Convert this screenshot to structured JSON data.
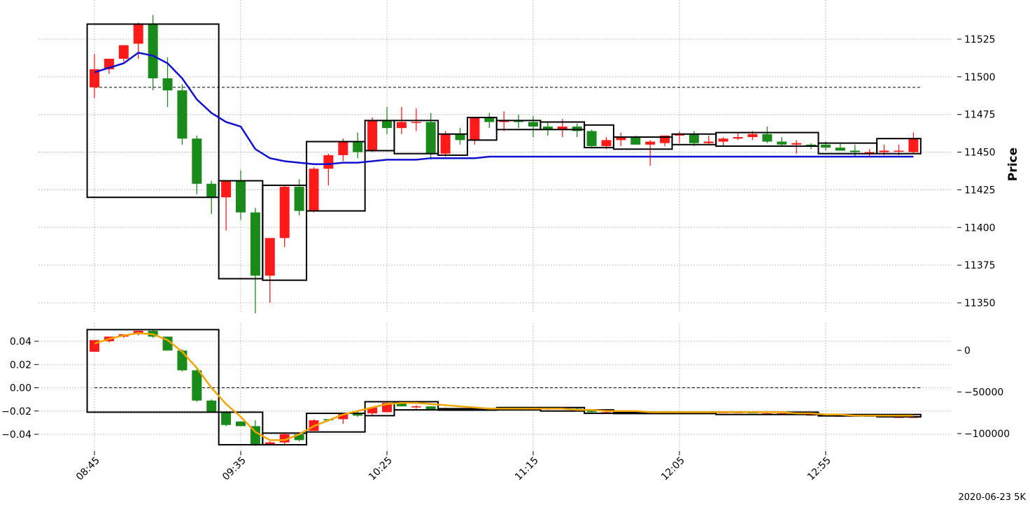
{
  "chart_data": [
    {
      "panel": "price",
      "type": "candlestick",
      "ylabel": "Price",
      "ylim": [
        11335,
        11545
      ],
      "y_ticks": [
        11350,
        11375,
        11400,
        11425,
        11450,
        11475,
        11500,
        11525
      ],
      "y_tick_labels": [
        "11350",
        "11375",
        "11400",
        "11425",
        "11450",
        "11475",
        "11500",
        "11525"
      ],
      "y_axis_side": "right",
      "x_tick_labels": [
        "08:45",
        "09:35",
        "10:25",
        "11:15",
        "12:05",
        "12:55"
      ],
      "x_tick_index": [
        0,
        10,
        20,
        30,
        40,
        50
      ],
      "candle_count": 57,
      "ohlc": [
        [
          11493,
          11515,
          11486,
          11505
        ],
        [
          11505,
          11512,
          11502,
          11512
        ],
        [
          11512,
          11520,
          11510,
          11521
        ],
        [
          11522,
          11536,
          11512,
          11535
        ],
        [
          11535,
          11541,
          11491,
          11499
        ],
        [
          11499,
          11513,
          11480,
          11491
        ],
        [
          11491,
          11495,
          11455,
          11459
        ],
        [
          11459,
          11461,
          11422,
          11429
        ],
        [
          11429,
          11431,
          11409,
          11420
        ],
        [
          11420,
          11430,
          11398,
          11431
        ],
        [
          11431,
          11438,
          11405,
          11410
        ],
        [
          11410,
          11413,
          11343,
          11368
        ],
        [
          11368,
          11393,
          11350,
          11393
        ],
        [
          11393,
          11428,
          11387,
          11427
        ],
        [
          11427,
          11432,
          11408,
          11411
        ],
        [
          11411,
          11440,
          11410,
          11439
        ],
        [
          11439,
          11449,
          11428,
          11448
        ],
        [
          11448,
          11459,
          11444,
          11457
        ],
        [
          11457,
          11463,
          11446,
          11450
        ],
        [
          11451,
          11473,
          11450,
          11471
        ],
        [
          11471,
          11480,
          11462,
          11466
        ],
        [
          11466,
          11480,
          11462,
          11470
        ],
        [
          11470,
          11479,
          11464,
          11470
        ],
        [
          11470,
          11476,
          11445,
          11449
        ],
        [
          11449,
          11464,
          11447,
          11462
        ],
        [
          11462,
          11466,
          11455,
          11458
        ],
        [
          11458,
          11473,
          11455,
          11473
        ],
        [
          11473,
          11476,
          11466,
          11470
        ],
        [
          11470,
          11477,
          11464,
          11471
        ],
        [
          11471,
          11475,
          11466,
          11470
        ],
        [
          11470,
          11474,
          11460,
          11467
        ],
        [
          11467,
          11470,
          11461,
          11465
        ],
        [
          11465,
          11472,
          11460,
          11467
        ],
        [
          11467,
          11469,
          11460,
          11464
        ],
        [
          11464,
          11465,
          11453,
          11454
        ],
        [
          11454,
          11460,
          11452,
          11458
        ],
        [
          11458,
          11463,
          11454,
          11460
        ],
        [
          11460,
          11461,
          11455,
          11455
        ],
        [
          11455,
          11458,
          11441,
          11457
        ],
        [
          11456,
          11461,
          11454,
          11461
        ],
        [
          11461,
          11464,
          11456,
          11462
        ],
        [
          11462,
          11464,
          11454,
          11456
        ],
        [
          11456,
          11461,
          11455,
          11457
        ],
        [
          11457,
          11460,
          11454,
          11459
        ],
        [
          11459,
          11463,
          11458,
          11460
        ],
        [
          11460,
          11464,
          11458,
          11462
        ],
        [
          11462,
          11467,
          11456,
          11457
        ],
        [
          11457,
          11460,
          11454,
          11455
        ],
        [
          11455,
          11458,
          11449,
          11456
        ],
        [
          11455,
          11456,
          11452,
          11454
        ],
        [
          11455,
          11457,
          11451,
          11453
        ],
        [
          11453,
          11456,
          11451,
          11451
        ],
        [
          11451,
          11455,
          11447,
          11450
        ],
        [
          11449,
          11452,
          11447,
          11450
        ],
        [
          11450,
          11455,
          11448,
          11451
        ],
        [
          11451,
          11455,
          11448,
          11451
        ],
        [
          11450,
          11463,
          11449,
          11459
        ]
      ],
      "ma_line": [
        11503,
        11506,
        11509,
        11516,
        11514,
        11509,
        11499,
        11485,
        11476,
        11470,
        11467,
        11452,
        11446,
        11444,
        11443,
        11442,
        11442,
        11443,
        11443,
        11444,
        11445,
        11445,
        11445,
        11446,
        11446,
        11446,
        11446,
        11447,
        11447,
        11447,
        11447,
        11447,
        11447,
        11447,
        11447,
        11447,
        11447,
        11447,
        11447,
        11447,
        11447,
        11447,
        11447,
        11447,
        11447,
        11447,
        11447,
        11447,
        11447,
        11447,
        11447,
        11447,
        11447,
        11447,
        11447,
        11447,
        11447
      ],
      "reference_level": 11493,
      "boxes": [
        {
          "start": -0.5,
          "end": 8.5,
          "low": 11420,
          "high": 11535
        },
        {
          "start": 8.5,
          "end": 11.5,
          "low": 11366,
          "high": 11431
        },
        {
          "start": 11.5,
          "end": 14.5,
          "low": 11365,
          "high": 11428
        },
        {
          "start": 14.5,
          "end": 18.5,
          "low": 11411,
          "high": 11457
        },
        {
          "start": 18.5,
          "end": 20.5,
          "low": 11451,
          "high": 11471
        },
        {
          "start": 20.5,
          "end": 23.5,
          "low": 11449,
          "high": 11471
        },
        {
          "start": 23.5,
          "end": 25.5,
          "low": 11448,
          "high": 11462
        },
        {
          "start": 25.5,
          "end": 27.5,
          "low": 11458,
          "high": 11473
        },
        {
          "start": 27.5,
          "end": 30.5,
          "low": 11465,
          "high": 11471
        },
        {
          "start": 30.5,
          "end": 33.5,
          "low": 11465,
          "high": 11470
        },
        {
          "start": 33.5,
          "end": 35.5,
          "low": 11453,
          "high": 11468
        },
        {
          "start": 35.5,
          "end": 39.5,
          "low": 11452,
          "high": 11460
        },
        {
          "start": 39.5,
          "end": 42.5,
          "low": 11455,
          "high": 11462
        },
        {
          "start": 42.5,
          "end": 49.5,
          "low": 11454,
          "high": 11463
        },
        {
          "start": 49.5,
          "end": 53.5,
          "low": 11449,
          "high": 11456
        },
        {
          "start": 53.5,
          "end": 56.5,
          "low": 11449,
          "high": 11459
        }
      ],
      "colors": {
        "up": "#1a8a1a",
        "down": "#ff1a1a",
        "ma": "#1010d0"
      }
    },
    {
      "panel": "indicator",
      "type": "candlestick",
      "ylim_left": [
        -0.051,
        0.054
      ],
      "y_ticks_left": [
        -0.04,
        -0.02,
        0.0,
        0.02,
        0.04
      ],
      "y_tick_labels_left": [
        "−0.04",
        "−0.02",
        "0.00",
        "0.02",
        "0.04"
      ],
      "ylim_right": [
        -110000,
        17500
      ],
      "y_ticks_right": [
        -100000,
        -50000,
        0
      ],
      "y_tick_labels_right": [
        "−100000",
        "−50000",
        "0"
      ],
      "x_tick_labels": [
        "08:45",
        "09:35",
        "10:25",
        "11:15",
        "12:05",
        "12:55"
      ],
      "ohlc": [
        [
          0.031,
          0.041,
          0.031,
          0.041
        ],
        [
          0.04,
          0.044,
          0.039,
          0.044
        ],
        [
          0.044,
          0.046,
          0.043,
          0.046
        ],
        [
          0.046,
          0.049,
          0.045,
          0.049
        ],
        [
          0.049,
          0.05,
          0.043,
          0.044
        ],
        [
          0.044,
          0.044,
          0.032,
          0.032
        ],
        [
          0.032,
          0.033,
          0.014,
          0.015
        ],
        [
          0.015,
          0.016,
          -0.012,
          -0.011
        ],
        [
          -0.011,
          -0.01,
          -0.021,
          -0.021
        ],
        [
          -0.021,
          -0.02,
          -0.033,
          -0.032
        ],
        [
          -0.029,
          -0.029,
          -0.033,
          -0.033
        ],
        [
          -0.033,
          -0.028,
          -0.05,
          -0.049
        ],
        [
          -0.049,
          -0.046,
          -0.049,
          -0.047
        ],
        [
          -0.047,
          -0.039,
          -0.049,
          -0.04
        ],
        [
          -0.04,
          -0.039,
          -0.046,
          -0.045
        ],
        [
          -0.037,
          -0.027,
          -0.037,
          -0.028
        ],
        [
          -0.027,
          -0.027,
          -0.029,
          -0.028
        ],
        [
          -0.027,
          -0.022,
          -0.031,
          -0.022
        ],
        [
          -0.022,
          -0.02,
          -0.025,
          -0.024
        ],
        [
          -0.022,
          -0.016,
          -0.024,
          -0.017
        ],
        [
          -0.021,
          -0.012,
          -0.021,
          -0.013
        ],
        [
          -0.012,
          -0.012,
          -0.016,
          -0.016
        ],
        [
          -0.016,
          -0.015,
          -0.018,
          -0.016
        ],
        [
          -0.016,
          -0.016,
          -0.019,
          -0.019
        ],
        [
          -0.018,
          -0.017,
          -0.019,
          -0.018
        ],
        [
          -0.018,
          -0.018,
          -0.019,
          -0.019
        ],
        [
          -0.019,
          -0.018,
          -0.019,
          -0.018
        ],
        [
          -0.018,
          -0.018,
          -0.019,
          -0.018
        ],
        [
          -0.018,
          -0.017,
          -0.019,
          -0.018
        ],
        [
          -0.018,
          -0.017,
          -0.019,
          -0.017
        ],
        [
          -0.017,
          -0.017,
          -0.018,
          -0.018
        ],
        [
          -0.018,
          -0.017,
          -0.019,
          -0.017
        ],
        [
          -0.017,
          -0.017,
          -0.018,
          -0.018
        ],
        [
          -0.018,
          -0.017,
          -0.02,
          -0.019
        ],
        [
          -0.019,
          -0.019,
          -0.022,
          -0.021
        ],
        [
          -0.021,
          -0.02,
          -0.022,
          -0.021
        ],
        [
          -0.021,
          -0.02,
          -0.022,
          -0.021
        ],
        [
          -0.021,
          -0.02,
          -0.022,
          -0.021
        ],
        [
          -0.021,
          -0.021,
          -0.022,
          -0.021
        ],
        [
          -0.021,
          -0.02,
          -0.022,
          -0.021
        ],
        [
          -0.021,
          -0.021,
          -0.022,
          -0.021
        ],
        [
          -0.021,
          -0.021,
          -0.022,
          -0.022
        ],
        [
          -0.022,
          -0.021,
          -0.022,
          -0.021
        ],
        [
          -0.021,
          -0.021,
          -0.022,
          -0.021
        ],
        [
          -0.021,
          -0.021,
          -0.022,
          -0.021
        ],
        [
          -0.021,
          -0.021,
          -0.022,
          -0.022
        ],
        [
          -0.022,
          -0.021,
          -0.022,
          -0.022
        ],
        [
          -0.022,
          -0.021,
          -0.023,
          -0.022
        ],
        [
          -0.022,
          -0.022,
          -0.023,
          -0.023
        ],
        [
          -0.023,
          -0.022,
          -0.024,
          -0.023
        ],
        [
          -0.023,
          -0.023,
          -0.024,
          -0.024
        ],
        [
          -0.024,
          -0.023,
          -0.024,
          -0.024
        ],
        [
          -0.024,
          -0.023,
          -0.025,
          -0.024
        ],
        [
          -0.024,
          -0.024,
          -0.025,
          -0.024
        ],
        [
          -0.024,
          -0.024,
          -0.025,
          -0.025
        ],
        [
          -0.025,
          -0.024,
          -0.025,
          -0.025
        ],
        [
          -0.025,
          -0.024,
          -0.025,
          -0.025
        ]
      ],
      "line_values": [
        0.038,
        0.042,
        0.045,
        0.047,
        0.046,
        0.041,
        0.031,
        0.017,
        0.0,
        -0.014,
        -0.025,
        -0.038,
        -0.045,
        -0.045,
        -0.04,
        -0.033,
        -0.028,
        -0.023,
        -0.02,
        -0.017,
        -0.014,
        -0.013,
        -0.013,
        -0.014,
        -0.015,
        -0.016,
        -0.017,
        -0.018,
        -0.018,
        -0.018,
        -0.018,
        -0.018,
        -0.018,
        -0.019,
        -0.019,
        -0.02,
        -0.02,
        -0.02,
        -0.021,
        -0.021,
        -0.021,
        -0.021,
        -0.021,
        -0.021,
        -0.021,
        -0.021,
        -0.021,
        -0.021,
        -0.022,
        -0.022,
        -0.023,
        -0.023,
        -0.024,
        -0.024,
        -0.024,
        -0.024,
        -0.024
      ],
      "reference_level": 0.0,
      "boxes": [
        {
          "start": -0.5,
          "end": 8.5,
          "low": -0.021,
          "high": 0.05
        },
        {
          "start": 8.5,
          "end": 11.5,
          "low": -0.049,
          "high": -0.021
        },
        {
          "start": 11.5,
          "end": 14.5,
          "low": -0.049,
          "high": -0.039
        },
        {
          "start": 14.5,
          "end": 18.5,
          "low": -0.038,
          "high": -0.022
        },
        {
          "start": 18.5,
          "end": 20.5,
          "low": -0.024,
          "high": -0.012
        },
        {
          "start": 20.5,
          "end": 23.5,
          "low": -0.019,
          "high": -0.012
        },
        {
          "start": 23.5,
          "end": 27.5,
          "low": -0.019,
          "high": -0.018
        },
        {
          "start": 27.5,
          "end": 30.5,
          "low": -0.019,
          "high": -0.017
        },
        {
          "start": 30.5,
          "end": 33.5,
          "low": -0.02,
          "high": -0.017
        },
        {
          "start": 33.5,
          "end": 35.5,
          "low": -0.022,
          "high": -0.019
        },
        {
          "start": 35.5,
          "end": 42.5,
          "low": -0.022,
          "high": -0.021
        },
        {
          "start": 42.5,
          "end": 49.5,
          "low": -0.023,
          "high": -0.021
        },
        {
          "start": 49.5,
          "end": 53.5,
          "low": -0.024,
          "high": -0.023
        },
        {
          "start": 53.5,
          "end": 56.5,
          "low": -0.025,
          "high": -0.023
        }
      ],
      "colors": {
        "up": "#1a8a1a",
        "down": "#ff1a1a",
        "line": "#f0a500"
      }
    }
  ],
  "footer": "2020-06-23 5K"
}
